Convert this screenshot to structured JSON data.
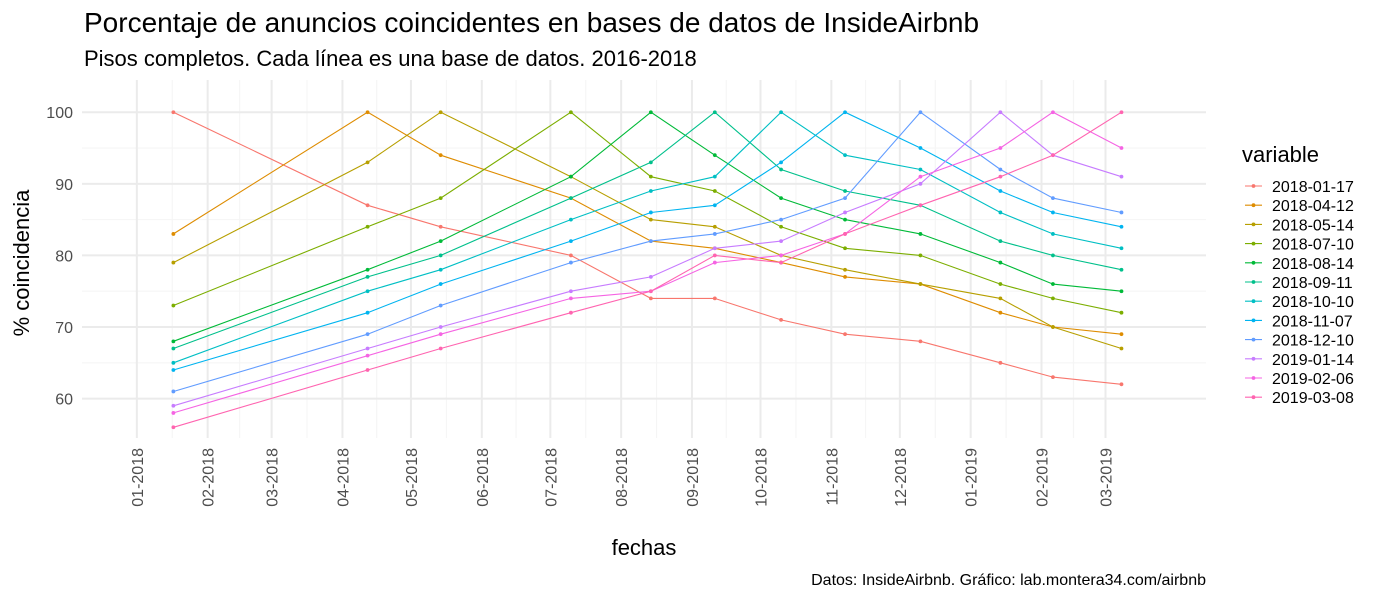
{
  "chart_data": {
    "type": "line",
    "title": "Porcentaje de anuncios coincidentes en bases de datos de InsideAirbnb",
    "subtitle": "Pisos completos. Cada línea es una base de datos. 2016-2018",
    "xlabel": "fechas",
    "ylabel": "% coincidencia",
    "caption": "Datos: InsideAirbnb. Gráfico: lab.montera34.com/airbnb",
    "legend_title": "variable",
    "legend_position": "right",
    "grid": true,
    "ylim": [
      54.5,
      104.5
    ],
    "xlim": [
      "2017-12-08",
      "2019-04-14"
    ],
    "x_ticks": [
      "2018-01-01",
      "2018-02-01",
      "2018-03-01",
      "2018-04-01",
      "2018-05-01",
      "2018-06-01",
      "2018-07-01",
      "2018-08-01",
      "2018-09-01",
      "2018-10-01",
      "2018-11-01",
      "2018-12-01",
      "2019-01-01",
      "2019-02-01",
      "2019-03-01"
    ],
    "x_tick_labels": [
      "01-2018",
      "02-2018",
      "03-2018",
      "04-2018",
      "05-2018",
      "06-2018",
      "07-2018",
      "08-2018",
      "09-2018",
      "10-2018",
      "11-2018",
      "12-2018",
      "01-2019",
      "02-2019",
      "03-2019"
    ],
    "y_ticks": [
      60,
      70,
      80,
      90,
      100
    ],
    "x": [
      "2018-01-17",
      "2018-04-12",
      "2018-05-14",
      "2018-07-10",
      "2018-08-14",
      "2018-09-11",
      "2018-10-10",
      "2018-11-07",
      "2018-12-10",
      "2019-01-14",
      "2019-02-06",
      "2019-03-08"
    ],
    "series": [
      {
        "name": "2018-01-17",
        "color": "#F8766D",
        "values": [
          100,
          87,
          84,
          80,
          74,
          74,
          71,
          69,
          68,
          65,
          63,
          62
        ]
      },
      {
        "name": "2018-04-12",
        "color": "#DE8C00",
        "values": [
          83,
          100,
          94,
          88,
          82,
          81,
          79,
          77,
          76,
          72,
          70,
          69
        ]
      },
      {
        "name": "2018-05-14",
        "color": "#B79F00",
        "values": [
          79,
          93,
          100,
          91,
          85,
          84,
          80,
          78,
          76,
          74,
          70,
          67
        ]
      },
      {
        "name": "2018-07-10",
        "color": "#7CAE00",
        "values": [
          73,
          84,
          88,
          100,
          91,
          89,
          84,
          81,
          80,
          76,
          74,
          72
        ]
      },
      {
        "name": "2018-08-14",
        "color": "#00BA38",
        "values": [
          68,
          78,
          82,
          91,
          100,
          94,
          88,
          85,
          83,
          79,
          76,
          75
        ]
      },
      {
        "name": "2018-09-11",
        "color": "#00C08B",
        "values": [
          67,
          77,
          80,
          88,
          93,
          100,
          92,
          89,
          87,
          82,
          80,
          78
        ]
      },
      {
        "name": "2018-10-10",
        "color": "#00BFC4",
        "values": [
          65,
          75,
          78,
          85,
          89,
          91,
          100,
          94,
          92,
          86,
          83,
          81
        ]
      },
      {
        "name": "2018-11-07",
        "color": "#00B4F0",
        "values": [
          64,
          72,
          76,
          82,
          86,
          87,
          93,
          100,
          95,
          89,
          86,
          84
        ]
      },
      {
        "name": "2018-12-10",
        "color": "#619CFF",
        "values": [
          61,
          69,
          73,
          79,
          82,
          83,
          85,
          88,
          100,
          92,
          88,
          86
        ]
      },
      {
        "name": "2019-01-14",
        "color": "#C77CFF",
        "values": [
          59,
          67,
          70,
          75,
          77,
          81,
          82,
          86,
          90,
          100,
          94,
          91
        ]
      },
      {
        "name": "2019-02-06",
        "color": "#F564E3",
        "values": [
          58,
          66,
          69,
          74,
          75,
          79,
          80,
          83,
          91,
          95,
          100,
          95
        ]
      },
      {
        "name": "2019-03-08",
        "color": "#FF64B0",
        "values": [
          56,
          64,
          67,
          72,
          75,
          80,
          79,
          83,
          87,
          91,
          94,
          100
        ]
      }
    ]
  },
  "colors": {
    "grid_major": "#EBEBEB",
    "grid_minor": "#F5F5F5",
    "tick_text": "#4D4D4D"
  }
}
